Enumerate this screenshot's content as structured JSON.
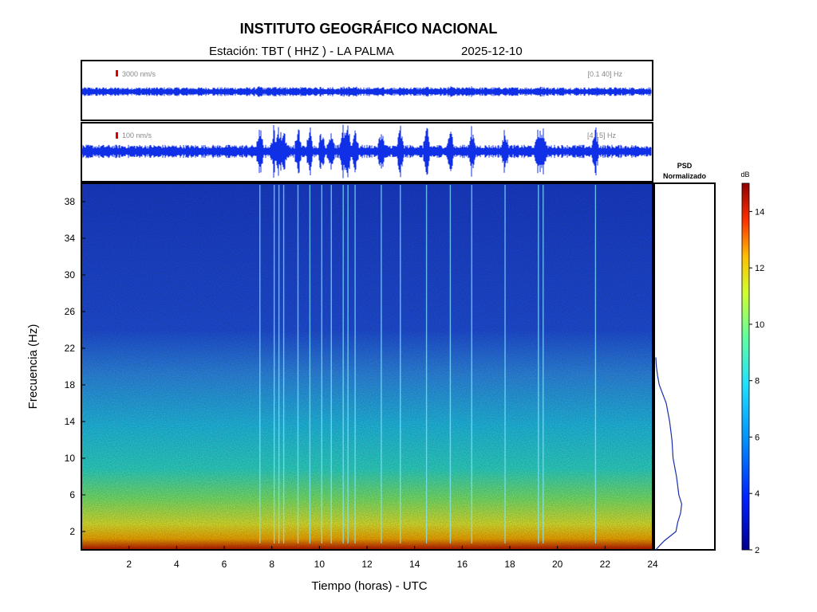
{
  "header": {
    "title": "INSTITUTO GEOGRÁFICO NACIONAL",
    "station": "Estación:  TBT ( HHZ ) - LA PALMA",
    "date": "2025-12-10"
  },
  "trace_top": {
    "amp_label": "3000 nm/s",
    "band_label": "[0.1 40] Hz"
  },
  "trace_mid": {
    "amp_label": "100 nm/s",
    "band_label": "[4 15] Hz"
  },
  "psd": {
    "title_line1": "PSD",
    "title_line2": "Normalizado"
  },
  "colorbar": {
    "unit": "dB",
    "ticks": [
      2,
      4,
      6,
      8,
      10,
      12,
      14
    ],
    "range": [
      2,
      15
    ],
    "colors": [
      "#00008f",
      "#0040ff",
      "#00c0ff",
      "#40ffbf",
      "#c0ff40",
      "#ffc000",
      "#ff4000",
      "#8f0000"
    ]
  },
  "chart_data": {
    "type": "heatmap",
    "xlabel": "Tiempo (horas) - UTC",
    "ylabel": "Frecuencia  (Hz)",
    "x_ticks": [
      2,
      4,
      6,
      8,
      10,
      12,
      14,
      16,
      18,
      20,
      22,
      24
    ],
    "y_ticks": [
      2,
      6,
      10,
      14,
      18,
      22,
      26,
      30,
      34,
      38
    ],
    "xlim": [
      0,
      24
    ],
    "ylim": [
      0,
      40
    ],
    "events_hours": [
      7.5,
      8.1,
      8.3,
      8.5,
      9.1,
      9.6,
      10.1,
      10.5,
      11.0,
      11.2,
      11.5,
      12.6,
      13.4,
      14.5,
      15.5,
      16.4,
      17.8,
      19.2,
      19.4,
      21.6
    ],
    "psd_curve": [
      [
        0.0,
        0.0
      ],
      [
        0.5,
        0.07
      ],
      [
        1.0,
        0.15
      ],
      [
        2,
        0.35
      ],
      [
        3,
        0.38
      ],
      [
        4,
        0.43
      ],
      [
        5,
        0.45
      ],
      [
        6,
        0.4
      ],
      [
        7,
        0.38
      ],
      [
        8,
        0.36
      ],
      [
        10,
        0.3
      ],
      [
        12,
        0.28
      ],
      [
        14,
        0.24
      ],
      [
        16,
        0.18
      ],
      [
        18,
        0.06
      ],
      [
        19,
        0.03
      ],
      [
        20,
        0.01
      ],
      [
        21,
        0.0
      ]
    ]
  }
}
